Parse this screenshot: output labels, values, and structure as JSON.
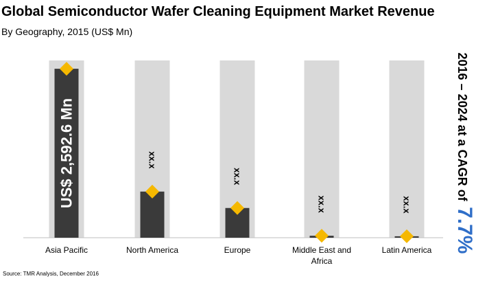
{
  "title": "Global Semiconductor Wafer Cleaning Equipment Market Revenue",
  "subtitle": "By Geography, 2015 (US$ Mn)",
  "source": "Source: TMR Analysis, December 2016",
  "cagr": {
    "prefix": "2016 – 2024 at a CAGR of",
    "value": "7.7%"
  },
  "colors": {
    "bar": "#3a3a3a",
    "track": "#d9d9d9",
    "marker": "#f5b800",
    "accent": "#2f6ec8"
  },
  "chart_data": {
    "type": "bar",
    "categories": [
      "Asia Pacific",
      "North America",
      "Europe",
      "Middle East and Africa",
      "Latin America"
    ],
    "values": [
      2592.6,
      708,
      456,
      30,
      22
    ],
    "labels": [
      "US$ 2,592.6 Mn",
      "xx.x",
      "xx.x",
      "xx.x",
      "xx.x"
    ],
    "ylim": [
      0,
      2720
    ],
    "markers": "diamond at top of each bar"
  }
}
